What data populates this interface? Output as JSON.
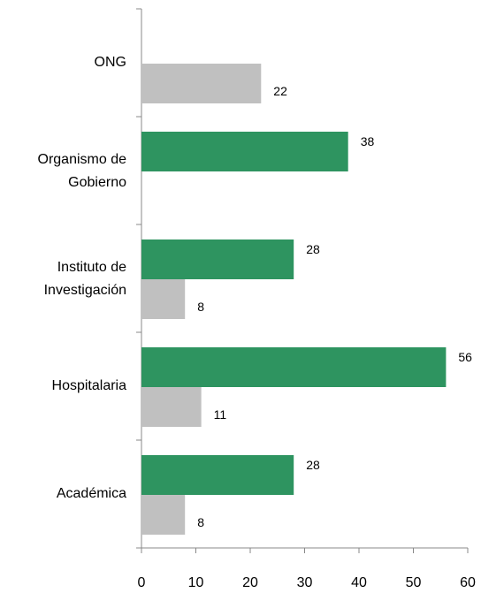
{
  "chart_data": {
    "type": "bar",
    "orientation": "horizontal",
    "categories": [
      "ONG",
      "Organismo de Gobierno",
      "Instituto de Investigación",
      "Hospitalaria",
      "Académica"
    ],
    "series": [
      {
        "color": "#2e9460",
        "values": [
          null,
          38,
          28,
          56,
          28
        ]
      },
      {
        "color": "#c0c0c0",
        "values": [
          22,
          null,
          8,
          11,
          8
        ]
      }
    ],
    "xlim": [
      0,
      60
    ],
    "xticks": [
      0,
      10,
      20,
      30,
      40,
      50,
      60
    ],
    "grid": false
  }
}
